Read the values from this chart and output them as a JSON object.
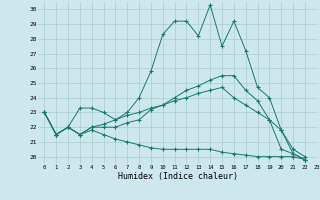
{
  "title": "",
  "xlabel": "Humidex (Indice chaleur)",
  "bg_color": "#cce8ec",
  "grid_color": "#aacccc",
  "line_color": "#1a7870",
  "xlim": [
    -0.5,
    23
  ],
  "ylim": [
    19.5,
    30.5
  ],
  "xticks": [
    0,
    1,
    2,
    3,
    4,
    5,
    6,
    7,
    8,
    9,
    10,
    11,
    12,
    13,
    14,
    15,
    16,
    17,
    18,
    19,
    20,
    21,
    22,
    23
  ],
  "yticks": [
    20,
    21,
    22,
    23,
    24,
    25,
    26,
    27,
    28,
    29,
    30
  ],
  "series": [
    [
      23.0,
      21.5,
      22.0,
      23.3,
      23.3,
      23.0,
      22.5,
      23.0,
      24.0,
      25.8,
      28.3,
      29.2,
      29.2,
      28.2,
      30.3,
      27.5,
      29.2,
      27.2,
      24.7,
      24.0,
      21.8,
      20.2,
      19.8
    ],
    [
      23.0,
      21.5,
      22.0,
      21.5,
      22.0,
      22.0,
      22.0,
      22.3,
      22.5,
      23.2,
      23.5,
      24.0,
      24.5,
      24.8,
      25.2,
      25.5,
      25.5,
      24.5,
      23.8,
      22.5,
      20.5,
      20.2,
      19.8
    ],
    [
      23.0,
      21.5,
      22.0,
      21.5,
      22.0,
      22.2,
      22.5,
      22.8,
      23.0,
      23.3,
      23.5,
      23.8,
      24.0,
      24.3,
      24.5,
      24.7,
      24.0,
      23.5,
      23.0,
      22.5,
      21.8,
      20.5,
      20.0
    ],
    [
      23.0,
      21.5,
      22.0,
      21.5,
      21.8,
      21.5,
      21.2,
      21.0,
      20.8,
      20.6,
      20.5,
      20.5,
      20.5,
      20.5,
      20.5,
      20.3,
      20.2,
      20.1,
      20.0,
      20.0,
      20.0,
      20.0,
      19.8
    ]
  ]
}
